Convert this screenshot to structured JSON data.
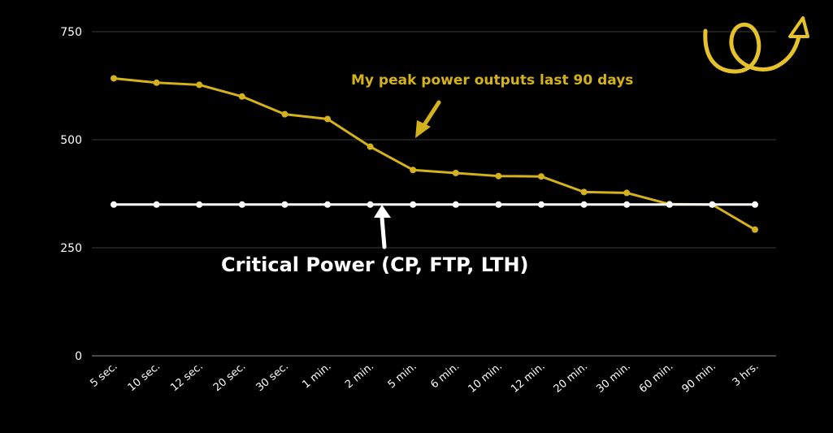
{
  "chart_data": {
    "type": "line",
    "categories": [
      "5 sec.",
      "10 sec.",
      "12 sec.",
      "20 sec.",
      "30 sec.",
      "1 min.",
      "2 min.",
      "5 min.",
      "6 min.",
      "10 min.",
      "12 min.",
      "20 min.",
      "30 min.",
      "60 min.",
      "90 min.",
      "3 hrs."
    ],
    "series": [
      {
        "values": [
          642,
          632,
          627,
          600,
          559,
          548,
          484,
          430,
          423,
          416,
          415,
          379,
          377,
          351,
          350,
          292
        ],
        "color": "#d4b21c"
      },
      {
        "values": [
          350,
          350,
          350,
          350,
          350,
          350,
          350,
          350,
          350,
          350,
          350,
          350,
          350,
          350,
          350,
          350
        ],
        "color": "#ffffff"
      }
    ],
    "ylim": [
      0,
      750
    ],
    "yticks": [
      0,
      250,
      500,
      750
    ],
    "grid": true,
    "annotations": {
      "peak_label": "My peak power outputs last 90 days",
      "cp_label": "Critical Power (CP, FTP, LTH)"
    },
    "colors": {
      "background": "#000000",
      "grid": "#3a3a3a",
      "peak": "#d4b21c",
      "cp": "#ffffff"
    }
  },
  "decoration": {
    "logo_icon": "squiggle-arrow-logo"
  }
}
